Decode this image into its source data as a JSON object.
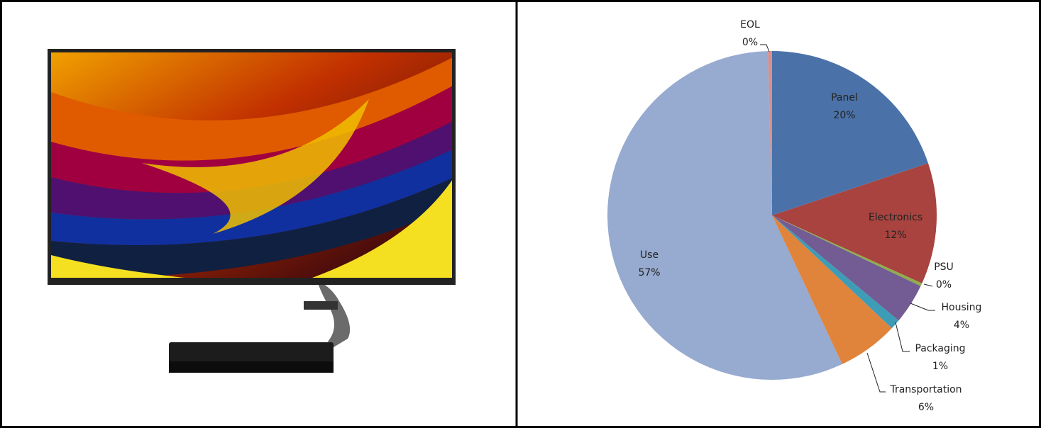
{
  "chart_data": {
    "type": "pie",
    "categories": [
      "Panel",
      "Electronics",
      "PSU",
      "Housing",
      "Packaging",
      "Transportation",
      "Use",
      "EOL"
    ],
    "values": [
      20,
      12,
      0.3,
      4,
      1,
      6,
      57,
      0.4
    ],
    "value_labels": [
      "20%",
      "12%",
      "0%",
      "4%",
      "1%",
      "6%",
      "57%",
      "0%"
    ],
    "colors": [
      "#4a72a8",
      "#a8433f",
      "#8fad4e",
      "#735b93",
      "#3d9cb6",
      "#e0843c",
      "#97aacf",
      "#d98f8c"
    ]
  }
}
